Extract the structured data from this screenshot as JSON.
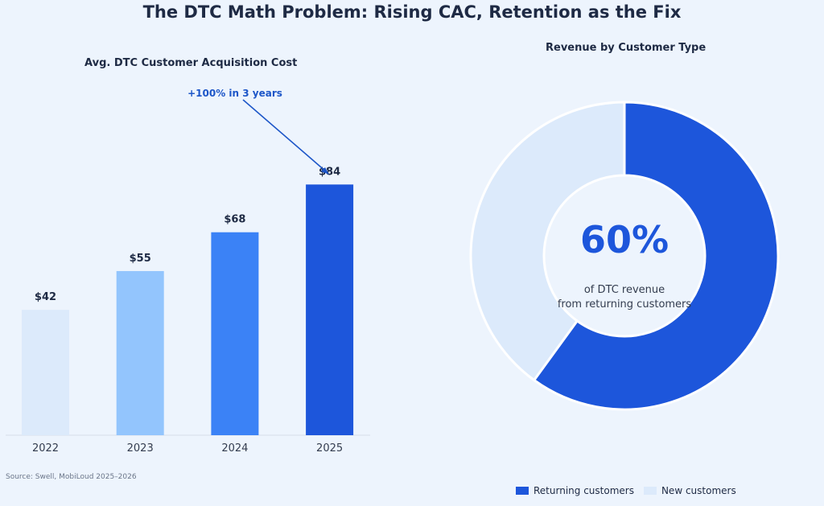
{
  "title": "The DTC Math Problem: Rising CAC, Retention as the Fix",
  "source": "Source: Swell, MobiLoud 2025–2026",
  "chart_data": [
    {
      "type": "bar",
      "title": "Avg. DTC Customer Acquisition Cost",
      "categories": [
        "2022",
        "2023",
        "2024",
        "2025"
      ],
      "values": [
        42,
        55,
        68,
        84
      ],
      "value_labels": [
        "$42",
        "$55",
        "$68",
        "$84"
      ],
      "colors": [
        "#dceafb",
        "#93c5fd",
        "#3b82f6",
        "#1d56db"
      ],
      "ylim": [
        0,
        100
      ],
      "grid": false,
      "annotation": {
        "text": "+100% in 3 years",
        "target": "2025"
      }
    },
    {
      "type": "pie",
      "title": "Revenue by Customer Type",
      "donut": true,
      "slices": [
        {
          "label": "Returning customers",
          "value": 60,
          "color": "#1d56db"
        },
        {
          "label": "New customers",
          "value": 40,
          "color": "#dceafb"
        }
      ],
      "center_value": "60%",
      "center_text": [
        "of DTC revenue",
        "from returning customers"
      ],
      "legend_position": "bottom-right"
    }
  ]
}
